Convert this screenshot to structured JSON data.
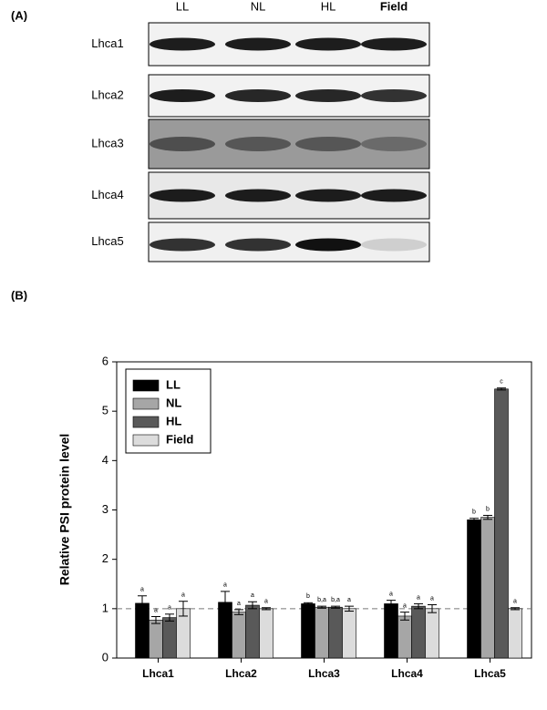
{
  "panel_a": {
    "label": "(A)",
    "lanes": [
      "LL",
      "NL",
      "HL",
      "Field"
    ],
    "rows": [
      "Lhca1",
      "Lhca2",
      "Lhca3",
      "Lhca4",
      "Lhca5"
    ]
  },
  "panel_b": {
    "label": "(B)"
  },
  "chart_data": {
    "type": "bar",
    "y_label": "Relative PSI protein level",
    "categories": [
      "Lhca1",
      "Lhca2",
      "Lhca3",
      "Lhca4",
      "Lhca5"
    ],
    "series": [
      {
        "name": "LL",
        "color": "#000000",
        "values": [
          1.11,
          1.13,
          1.1,
          1.1,
          2.8
        ],
        "errors": [
          0.15,
          0.22,
          0.02,
          0.07,
          0.03
        ],
        "letters": [
          "a",
          "a",
          "b",
          "a",
          "b"
        ]
      },
      {
        "name": "NL",
        "color": "#a6a6a6",
        "values": [
          0.77,
          0.93,
          1.03,
          0.85,
          2.85
        ],
        "errors": [
          0.07,
          0.05,
          0.02,
          0.08,
          0.04
        ],
        "letters": [
          "a",
          "a",
          "b,a",
          "a",
          "b"
        ]
      },
      {
        "name": "HL",
        "color": "#595959",
        "values": [
          0.82,
          1.07,
          1.03,
          1.05,
          5.45
        ],
        "errors": [
          0.07,
          0.07,
          0.02,
          0.05,
          0.02
        ],
        "letters": [
          "a",
          "a",
          "b,a",
          "a",
          "c"
        ]
      },
      {
        "name": "Field",
        "color": "#dcdcdc",
        "values": [
          1.0,
          1.0,
          1.0,
          1.0,
          1.0
        ],
        "errors": [
          0.15,
          0.02,
          0.05,
          0.08,
          0.02
        ],
        "letters": [
          "a",
          "a",
          "a",
          "a",
          "a"
        ]
      }
    ],
    "reference_line": 1,
    "ylim": [
      0,
      6
    ],
    "yticks": [
      0,
      1,
      2,
      3,
      4,
      5,
      6
    ],
    "legend": "upper left"
  }
}
